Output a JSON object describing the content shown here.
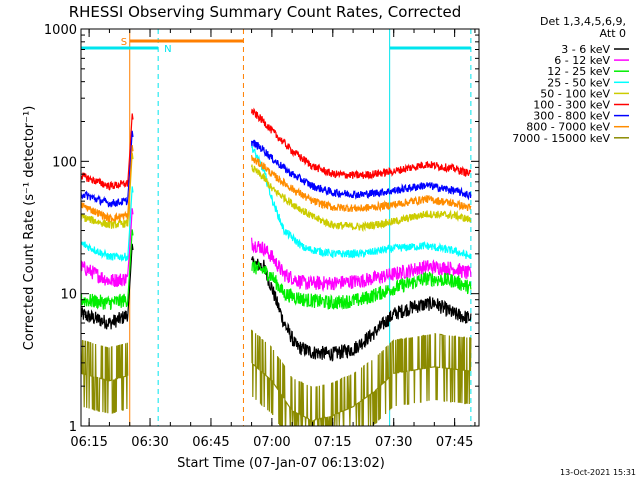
{
  "chart_data": {
    "type": "line",
    "title": "RHESSI Observing Summary Count Rates, Corrected",
    "xlabel": "Start Time (07-Jan-07 06:13:02)",
    "ylabel": "Corrected Count Rate (s⁻¹ detector⁻¹)",
    "yscale": "log",
    "ylim": [
      1,
      1000
    ],
    "xlim": [
      "06:13",
      "07:51"
    ],
    "x_ticks": [
      "06:15",
      "06:30",
      "06:45",
      "07:00",
      "07:15",
      "07:30",
      "07:45"
    ],
    "y_ticks": [
      "1",
      "10",
      "100",
      "1000"
    ],
    "legend_title": [
      "Det 1,3,4,5,6,9,",
      "Att 0"
    ],
    "legend_position": "outside-right",
    "timestamp": "13-Oct-2021 15:31",
    "grid": false,
    "annotations": {
      "night_bars": [
        {
          "label": "N",
          "start": "06:13",
          "end": "06:32",
          "color": "#00e5ee"
        },
        {
          "label": "",
          "start": "07:29",
          "end": "07:49",
          "color": "#00e5ee"
        }
      ],
      "saa_bar": {
        "label": "S",
        "start": "06:25",
        "end": "06:53",
        "color": "#ff7f00"
      },
      "vertical_lines": [
        {
          "time": "06:13",
          "style": "solid",
          "color": "#00e5ee"
        },
        {
          "time": "06:32",
          "style": "dashed",
          "color": "#00e5ee"
        },
        {
          "time": "06:25",
          "style": "solid",
          "color": "#ff7f00"
        },
        {
          "time": "06:53",
          "style": "dashed",
          "color": "#ff7f00"
        },
        {
          "time": "07:29",
          "style": "solid",
          "color": "#00e5ee"
        },
        {
          "time": "07:49",
          "style": "dashed",
          "color": "#00e5ee"
        }
      ]
    },
    "data_gap": [
      "06:26",
      "06:55"
    ],
    "series": [
      {
        "name": "3 - 6 keV",
        "color": "#000000",
        "seg1": [
          [
            "06:13",
            7
          ],
          [
            "06:20",
            6
          ],
          [
            "06:23",
            6.5
          ],
          [
            "06:24.5",
            7
          ]
        ],
        "seg2": [
          [
            "06:55",
            17
          ],
          [
            "06:58",
            16
          ],
          [
            "07:00",
            11
          ],
          [
            "07:03",
            6
          ],
          [
            "07:06",
            4
          ],
          [
            "07:10",
            3.6
          ],
          [
            "07:15",
            3.5
          ],
          [
            "07:20",
            3.8
          ],
          [
            "07:25",
            5
          ],
          [
            "07:30",
            7
          ],
          [
            "07:35",
            8
          ],
          [
            "07:40",
            8.5
          ],
          [
            "07:45",
            7
          ],
          [
            "07:49",
            6.5
          ]
        ]
      },
      {
        "name": "6 - 12 keV",
        "color": "#ff00ff",
        "seg1": [
          [
            "06:13",
            16
          ],
          [
            "06:20",
            12.5
          ],
          [
            "06:24.5",
            13
          ]
        ],
        "seg2": [
          [
            "06:55",
            24
          ],
          [
            "06:58",
            22
          ],
          [
            "07:00",
            19
          ],
          [
            "07:03",
            14
          ],
          [
            "07:08",
            12
          ],
          [
            "07:15",
            12
          ],
          [
            "07:22",
            12.5
          ],
          [
            "07:30",
            14
          ],
          [
            "07:38",
            16
          ],
          [
            "07:45",
            15.5
          ],
          [
            "07:49",
            14
          ]
        ]
      },
      {
        "name": "12 - 25 keV",
        "color": "#00ee00",
        "seg1": [
          [
            "06:13",
            9
          ],
          [
            "06:20",
            8.5
          ],
          [
            "06:24.5",
            9
          ]
        ],
        "seg2": [
          [
            "06:55",
            16
          ],
          [
            "06:58",
            15
          ],
          [
            "07:00",
            13.5
          ],
          [
            "07:03",
            10
          ],
          [
            "07:08",
            9
          ],
          [
            "07:15",
            8.5
          ],
          [
            "07:22",
            9
          ],
          [
            "07:30",
            11
          ],
          [
            "07:38",
            13
          ],
          [
            "07:45",
            12.5
          ],
          [
            "07:49",
            11
          ]
        ]
      },
      {
        "name": "25 - 50 keV",
        "color": "#00ffff",
        "seg1": [
          [
            "06:13",
            24
          ],
          [
            "06:20",
            19
          ],
          [
            "06:24.5",
            19
          ]
        ],
        "seg2": [
          [
            "06:55",
            130
          ],
          [
            "06:58",
            85
          ],
          [
            "07:00",
            52
          ],
          [
            "07:03",
            30
          ],
          [
            "07:08",
            22
          ],
          [
            "07:15",
            20
          ],
          [
            "07:22",
            20
          ],
          [
            "07:30",
            22
          ],
          [
            "07:38",
            23
          ],
          [
            "07:45",
            21
          ],
          [
            "07:49",
            19
          ]
        ]
      },
      {
        "name": "50 - 100 keV",
        "color": "#cccc00",
        "seg1": [
          [
            "06:13",
            38
          ],
          [
            "06:20",
            33
          ],
          [
            "06:24.5",
            34
          ]
        ],
        "seg2": [
          [
            "06:55",
            90
          ],
          [
            "06:58",
            75
          ],
          [
            "07:00",
            62
          ],
          [
            "07:05",
            48
          ],
          [
            "07:10",
            38
          ],
          [
            "07:15",
            33
          ],
          [
            "07:22",
            32
          ],
          [
            "07:30",
            35
          ],
          [
            "07:38",
            40
          ],
          [
            "07:45",
            39
          ],
          [
            "07:49",
            36
          ]
        ]
      },
      {
        "name": "100 - 300 keV",
        "color": "#ff0000",
        "seg1": [
          [
            "06:13",
            78
          ],
          [
            "06:20",
            65
          ],
          [
            "06:24.5",
            68
          ]
        ],
        "seg2": [
          [
            "06:55",
            240
          ],
          [
            "06:58",
            200
          ],
          [
            "07:00",
            170
          ],
          [
            "07:05",
            120
          ],
          [
            "07:10",
            92
          ],
          [
            "07:15",
            80
          ],
          [
            "07:22",
            78
          ],
          [
            "07:30",
            84
          ],
          [
            "07:38",
            95
          ],
          [
            "07:45",
            88
          ],
          [
            "07:49",
            80
          ]
        ]
      },
      {
        "name": "300 - 800 keV",
        "color": "#0000ff",
        "seg1": [
          [
            "06:13",
            57
          ],
          [
            "06:20",
            48
          ],
          [
            "06:24.5",
            50
          ]
        ],
        "seg2": [
          [
            "06:55",
            140
          ],
          [
            "06:58",
            122
          ],
          [
            "07:00",
            105
          ],
          [
            "07:05",
            80
          ],
          [
            "07:10",
            65
          ],
          [
            "07:15",
            58
          ],
          [
            "07:22",
            56
          ],
          [
            "07:30",
            60
          ],
          [
            "07:38",
            66
          ],
          [
            "07:45",
            60
          ],
          [
            "07:49",
            55
          ]
        ]
      },
      {
        "name": "800 - 7000 keV",
        "color": "#ff8c00",
        "seg1": [
          [
            "06:13",
            47
          ],
          [
            "06:20",
            37
          ],
          [
            "06:24.5",
            39
          ]
        ],
        "seg2": [
          [
            "06:55",
            105
          ],
          [
            "06:58",
            92
          ],
          [
            "07:00",
            80
          ],
          [
            "07:05",
            62
          ],
          [
            "07:10",
            50
          ],
          [
            "07:15",
            45
          ],
          [
            "07:22",
            44
          ],
          [
            "07:30",
            47
          ],
          [
            "07:38",
            52
          ],
          [
            "07:45",
            48
          ],
          [
            "07:49",
            44
          ]
        ]
      },
      {
        "name": "7000 - 15000 keV",
        "color": "#8b8b00",
        "seg1": [
          [
            "06:13",
            2.5
          ],
          [
            "06:20",
            2.2
          ],
          [
            "06:24.5",
            2.4
          ]
        ],
        "seg2": [
          [
            "06:55",
            3
          ],
          [
            "07:00",
            2.2
          ],
          [
            "07:05",
            1.3
          ],
          [
            "07:10",
            1.1
          ],
          [
            "07:15",
            1.2
          ],
          [
            "07:20",
            1.4
          ],
          [
            "07:25",
            1.8
          ],
          [
            "07:30",
            2.5
          ],
          [
            "07:40",
            2.8
          ],
          [
            "07:49",
            2.6
          ]
        ]
      }
    ]
  }
}
